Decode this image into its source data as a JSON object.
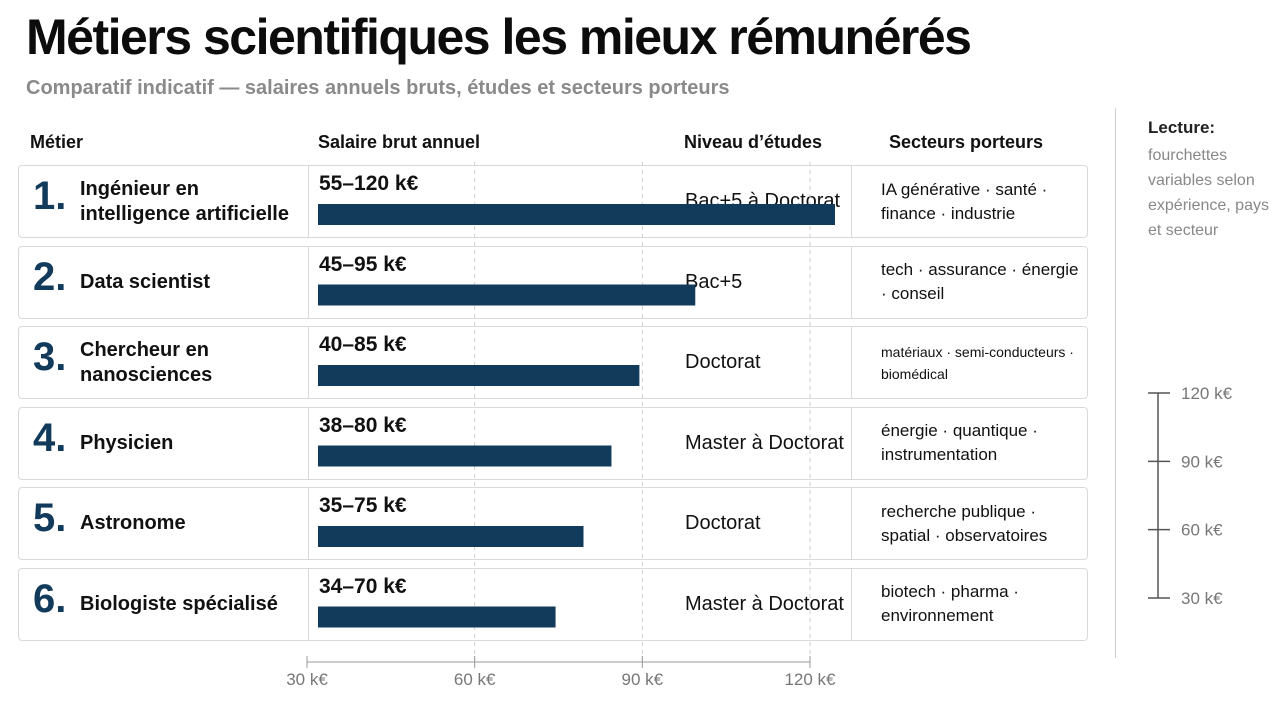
{
  "title": "Métiers scientifiques les mieux rémunérés",
  "subtitle": "Comparatif indicatif — salaires annuels bruts, études et secteurs porteurs",
  "columns": {
    "metier": "Métier",
    "salaire": "Salaire brut annuel",
    "etudes": "Niveau d’études",
    "secteurs": "Secteurs porteurs"
  },
  "lecture": {
    "title": "Lecture:",
    "text": "fourchettes variables selon expérience, pays et secteur"
  },
  "chart_data": {
    "type": "bar",
    "orientation": "horizontal",
    "categories": [
      "Ingénieur en intelligence artificielle",
      "Data scientist",
      "Chercheur en nanosciences",
      "Physicien",
      "Astronome",
      "Biologiste spécialisé"
    ],
    "values": [
      120,
      95,
      85,
      80,
      75,
      70
    ],
    "ranges": [
      [
        55,
        120
      ],
      [
        45,
        95
      ],
      [
        40,
        85
      ],
      [
        38,
        80
      ],
      [
        35,
        75
      ],
      [
        34,
        70
      ]
    ],
    "xlim": [
      30,
      120
    ],
    "xticks": [
      "30 k€",
      "60 k€",
      "90 k€",
      "120 k€"
    ],
    "xtick_values": [
      30,
      60,
      90,
      120
    ],
    "grid": true,
    "bar_color": "#123a5a"
  },
  "rows": [
    {
      "rank": "1.",
      "name": "Ingénieur en intelligence artificielle",
      "salary": "55–120 k€",
      "education": "Bac+5 à Doctorat",
      "sectors": "IA générative · santé · finance · industrie",
      "small": false
    },
    {
      "rank": "2.",
      "name": "Data scientist",
      "salary": "45–95 k€",
      "education": "Bac+5",
      "sectors": "tech · assurance · énergie · conseil",
      "small": false
    },
    {
      "rank": "3.",
      "name": "Chercheur en nanosciences",
      "salary": "40–85 k€",
      "education": "Doctorat",
      "sectors": "matériaux · semi-conducteurs · biomédical",
      "small": true
    },
    {
      "rank": "4.",
      "name": "Physicien",
      "salary": "38–80 k€",
      "education": "Master à Doctorat",
      "sectors": "énergie · quantique · instrumentation",
      "small": false
    },
    {
      "rank": "5.",
      "name": "Astronome",
      "salary": "35–75 k€",
      "education": "Doctorat",
      "sectors": "recherche publique · spatial · observatoires",
      "small": false
    },
    {
      "rank": "6.",
      "name": "Biologiste spécialisé",
      "salary": "34–70 k€",
      "education": "Master à Doctorat",
      "sectors": "biotech · pharma · environnement",
      "small": false
    }
  ],
  "scale": {
    "labels": [
      "120 k€",
      "90 k€",
      "60 k€",
      "30 k€"
    ],
    "values": [
      120,
      90,
      60,
      30
    ]
  }
}
